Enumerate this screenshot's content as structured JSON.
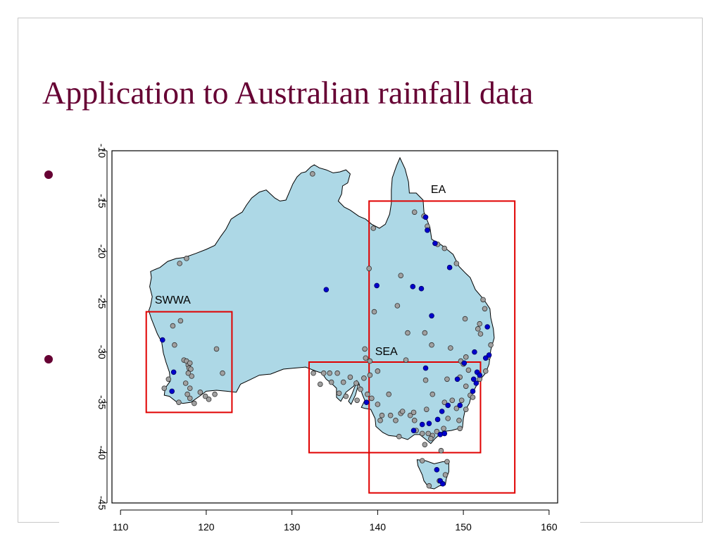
{
  "slide": {
    "title": "Application to Australian rainfall data"
  },
  "chart_data": {
    "type": "scatter",
    "title": "",
    "xlabel": "",
    "ylabel": "",
    "xlim": [
      109,
      161
    ],
    "ylim": [
      -45,
      -10
    ],
    "x_ticks": [
      110,
      120,
      130,
      140,
      150,
      160
    ],
    "y_ticks": [
      -10,
      -15,
      -20,
      -25,
      -30,
      -35,
      -40,
      -45
    ],
    "grid": false,
    "colors": {
      "land": "#add8e6",
      "coast": "#000000",
      "box": "#e00000",
      "station_grey": "#a0a0a0",
      "station_blue": "#0000cc"
    },
    "regions": [
      {
        "name": "SWWA",
        "lon": [
          113,
          123
        ],
        "lat": [
          -36,
          -26
        ]
      },
      {
        "name": "EA",
        "lon": [
          139,
          156
        ],
        "lat": [
          -44,
          -15
        ]
      },
      {
        "name": "SEA",
        "lon": [
          132,
          152
        ],
        "lat": [
          -40,
          -31
        ]
      }
    ],
    "series": [
      {
        "color": "grey",
        "points": [
          [
            132.4,
            -12.3
          ],
          [
            139.5,
            -17.7
          ],
          [
            144.3,
            -16.1
          ],
          [
            145.4,
            -16.5
          ],
          [
            145.8,
            -17.5
          ],
          [
            147,
            -19.3
          ],
          [
            147.8,
            -19.7
          ],
          [
            149.2,
            -21.2
          ],
          [
            139,
            -21.7
          ],
          [
            142.7,
            -22.4
          ],
          [
            142.3,
            -25.4
          ],
          [
            139.6,
            -26
          ],
          [
            143.5,
            -28.1
          ],
          [
            145.5,
            -28.1
          ],
          [
            146.3,
            -29.3
          ],
          [
            148.5,
            -29.6
          ],
          [
            150.2,
            -26.7
          ],
          [
            152.3,
            -24.8
          ],
          [
            152.5,
            -25.7
          ],
          [
            151.9,
            -27.2
          ],
          [
            151.7,
            -27.7
          ],
          [
            152,
            -28.2
          ],
          [
            153.2,
            -29.3
          ],
          [
            152.9,
            -30.5
          ],
          [
            150.3,
            -30.5
          ],
          [
            149.7,
            -30.9
          ],
          [
            150,
            -31.2
          ],
          [
            150.6,
            -31.8
          ],
          [
            149.6,
            -32.5
          ],
          [
            150.3,
            -33.4
          ],
          [
            152.6,
            -31.9
          ],
          [
            151.9,
            -32.7
          ],
          [
            150.8,
            -34.3
          ],
          [
            151.1,
            -34.5
          ],
          [
            149.8,
            -34.8
          ],
          [
            150.3,
            -35.7
          ],
          [
            149.5,
            -36.8
          ],
          [
            149.6,
            -37.6
          ],
          [
            148.2,
            -36.6
          ],
          [
            147.7,
            -37.6
          ],
          [
            146.9,
            -37.9
          ],
          [
            146.4,
            -38.3
          ],
          [
            145.9,
            -38.1
          ],
          [
            145.2,
            -38.1
          ],
          [
            144.5,
            -37.8
          ],
          [
            144.3,
            -36.8
          ],
          [
            143.8,
            -36.3
          ],
          [
            142.7,
            -36.1
          ],
          [
            142.1,
            -36.8
          ],
          [
            141.5,
            -36.3
          ],
          [
            140.5,
            -36.3
          ],
          [
            140.3,
            -36.8
          ],
          [
            140,
            -35.2
          ],
          [
            139.3,
            -34.6
          ],
          [
            138.8,
            -34.2
          ],
          [
            138,
            -33.7
          ],
          [
            137.5,
            -33.1
          ],
          [
            136.8,
            -32.5
          ],
          [
            136,
            -33
          ],
          [
            135.3,
            -32.1
          ],
          [
            134.4,
            -32.1
          ],
          [
            133.7,
            -32.1
          ],
          [
            132.5,
            -32.1
          ],
          [
            133.3,
            -33.2
          ],
          [
            134.6,
            -33
          ],
          [
            135.5,
            -34.1
          ],
          [
            136.3,
            -34.4
          ],
          [
            137.6,
            -34.8
          ],
          [
            138.4,
            -32.6
          ],
          [
            139.1,
            -32.3
          ],
          [
            140,
            -31.9
          ],
          [
            141.3,
            -34.2
          ],
          [
            142.9,
            -35.9
          ],
          [
            144.2,
            -36
          ],
          [
            146.4,
            -34.2
          ],
          [
            147.8,
            -35
          ],
          [
            145.6,
            -32.8
          ],
          [
            148.1,
            -32.7
          ],
          [
            148.7,
            -34.8
          ],
          [
            149.2,
            -35.6
          ],
          [
            143.3,
            -30.8
          ],
          [
            145.7,
            -35.7
          ],
          [
            142.5,
            -38.4
          ],
          [
            146.2,
            -38.6
          ],
          [
            145.5,
            -39.2
          ],
          [
            147.4,
            -39.8
          ],
          [
            145.2,
            -40.8
          ],
          [
            148.1,
            -40.9
          ],
          [
            147.9,
            -42.2
          ],
          [
            147.2,
            -42.8
          ],
          [
            146,
            -43.3
          ],
          [
            138.6,
            -30.6
          ],
          [
            138.5,
            -29.7
          ],
          [
            139.1,
            -30.9
          ],
          [
            116.9,
            -21.2
          ],
          [
            117.7,
            -20.7
          ],
          [
            116.1,
            -27.4
          ],
          [
            117,
            -26.9
          ],
          [
            116.3,
            -29.3
          ],
          [
            117.4,
            -30.8
          ],
          [
            117.7,
            -30.9
          ],
          [
            117.9,
            -31.3
          ],
          [
            118.1,
            -31.1
          ],
          [
            118,
            -31.6
          ],
          [
            118.2,
            -31.7
          ],
          [
            117.9,
            -32.1
          ],
          [
            118.3,
            -32.4
          ],
          [
            117.6,
            -33.1
          ],
          [
            118.1,
            -33.6
          ],
          [
            117.8,
            -34.2
          ],
          [
            119.3,
            -34
          ],
          [
            118.1,
            -34.6
          ],
          [
            118.6,
            -35.1
          ],
          [
            119.9,
            -34.4
          ],
          [
            120.3,
            -34.7
          ],
          [
            121,
            -34.2
          ],
          [
            115.1,
            -33.6
          ],
          [
            115.6,
            -32.7
          ],
          [
            121.2,
            -29.7
          ],
          [
            121.9,
            -32.1
          ],
          [
            116.8,
            -35
          ]
        ]
      },
      {
        "color": "blue",
        "points": [
          [
            145.6,
            -16.6
          ],
          [
            145.8,
            -17.9
          ],
          [
            146.7,
            -19.2
          ],
          [
            148.4,
            -21.6
          ],
          [
            139.9,
            -23.4
          ],
          [
            144.1,
            -23.5
          ],
          [
            145.1,
            -23.7
          ],
          [
            134,
            -23.8
          ],
          [
            146.3,
            -26.4
          ],
          [
            152.8,
            -27.5
          ],
          [
            151.3,
            -30
          ],
          [
            152.6,
            -30.6
          ],
          [
            153,
            -30.3
          ],
          [
            151.6,
            -32
          ],
          [
            151.2,
            -32.7
          ],
          [
            151.5,
            -33.1
          ],
          [
            151.1,
            -33.9
          ],
          [
            145.6,
            -31.6
          ],
          [
            149.3,
            -32.7
          ],
          [
            149.6,
            -35.3
          ],
          [
            148.2,
            -35.3
          ],
          [
            147.5,
            -35.9
          ],
          [
            146,
            -37.1
          ],
          [
            147,
            -36.7
          ],
          [
            147.3,
            -38.2
          ],
          [
            147.8,
            -38.1
          ],
          [
            145.2,
            -37.2
          ],
          [
            144.2,
            -37.8
          ],
          [
            138.7,
            -35
          ],
          [
            146.9,
            -41.7
          ],
          [
            147.3,
            -42.8
          ],
          [
            147.6,
            -43.1
          ],
          [
            116.2,
            -32
          ],
          [
            114.9,
            -28.8
          ],
          [
            116,
            -33.9
          ],
          [
            150.1,
            -31.1
          ],
          [
            151.9,
            -32.3
          ]
        ]
      }
    ]
  }
}
